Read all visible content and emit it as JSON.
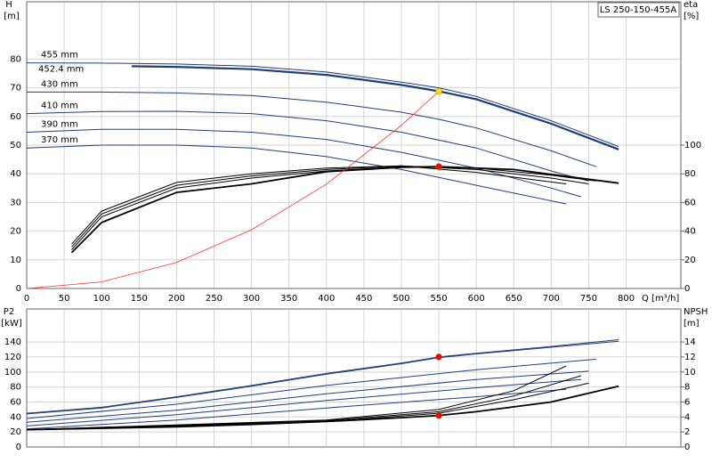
{
  "chart_data": [
    {
      "type": "line",
      "model": "LS 250-150-455A",
      "ylabel": "H",
      "yunit": "[m]",
      "y2label": "eta",
      "y2unit": "[%]",
      "xlabel": "Q [m³/h]",
      "xlim": [
        0,
        873
      ],
      "xticks": [
        0,
        50,
        100,
        150,
        200,
        250,
        300,
        350,
        400,
        450,
        500,
        550,
        600,
        650,
        700,
        750,
        800
      ],
      "ylim": [
        0,
        100
      ],
      "yticks": [
        0,
        10,
        20,
        30,
        40,
        50,
        60,
        70,
        80
      ],
      "y2lim": [
        0,
        200
      ],
      "y2ticks": [
        0,
        20,
        40,
        60,
        80,
        100
      ],
      "grid": true,
      "series": [
        {
          "name": "455 mm",
          "color": "#1f3f7a",
          "x": [
            0,
            100,
            200,
            300,
            400,
            500,
            550,
            600,
            700,
            790
          ],
          "values": [
            78.7,
            78.6,
            78.3,
            77.5,
            75.5,
            72,
            70,
            67,
            58.5,
            49.5
          ]
        },
        {
          "name": "452.4 mm",
          "color": "#1f3f7a",
          "width": 2.2,
          "x": [
            140,
            200,
            300,
            400,
            500,
            550,
            600,
            700,
            790
          ],
          "values": [
            77.5,
            77.3,
            76.5,
            74.5,
            71,
            68.8,
            66,
            57.5,
            48.5
          ]
        },
        {
          "name": "430 mm",
          "color": "#1f3f7a",
          "x": [
            0,
            100,
            200,
            300,
            400,
            500,
            550,
            600,
            700,
            760
          ],
          "values": [
            68.5,
            68.5,
            68.2,
            67.3,
            65,
            61.5,
            59,
            56,
            48,
            42.5
          ]
        },
        {
          "name": "410 mm",
          "color": "#1f3f7a",
          "x": [
            0,
            100,
            200,
            300,
            400,
            500,
            600,
            700,
            750
          ],
          "values": [
            61,
            61.7,
            61.8,
            61,
            58.5,
            54.5,
            49,
            41,
            37.5
          ]
        },
        {
          "name": "390 mm",
          "color": "#1f3f7a",
          "x": [
            0,
            100,
            200,
            300,
            400,
            500,
            600,
            700,
            740
          ],
          "values": [
            54.5,
            55.5,
            55.5,
            54.5,
            52,
            47.5,
            42,
            35,
            32
          ]
        },
        {
          "name": "370 mm",
          "color": "#1f3f7a",
          "x": [
            0,
            100,
            200,
            300,
            400,
            500,
            600,
            720
          ],
          "values": [
            49,
            50,
            50,
            49,
            46,
            41.5,
            36,
            29.5
          ]
        },
        {
          "axis": "y2",
          "color": "#000000",
          "width": 1.8,
          "x": [
            60,
            100,
            200,
            300,
            400,
            500,
            550,
            650,
            790
          ],
          "values": [
            25,
            46,
            67,
            73,
            81.5,
            84.6,
            85,
            83,
            73.5
          ]
        },
        {
          "axis": "y2",
          "color": "#000000",
          "x": [
            60,
            100,
            200,
            300,
            400,
            500,
            600,
            700,
            760
          ],
          "values": [
            27,
            50,
            70,
            77,
            82,
            85,
            84,
            79,
            75
          ]
        },
        {
          "axis": "y2",
          "color": "#000000",
          "x": [
            60,
            100,
            200,
            300,
            400,
            500,
            600,
            700,
            750
          ],
          "values": [
            29,
            52,
            72,
            78.5,
            83,
            85.5,
            83,
            77,
            73
          ]
        },
        {
          "axis": "y2",
          "color": "#000000",
          "x": [
            60,
            100,
            200,
            300,
            400,
            500,
            600,
            720
          ],
          "values": [
            31,
            54,
            74,
            80,
            84,
            85.5,
            81,
            73
          ]
        },
        {
          "color": "#ff3030",
          "width": 0.8,
          "x": [
            0,
            100,
            200,
            300,
            400,
            500,
            550
          ],
          "values": [
            0,
            2.3,
            9.1,
            20.5,
            36.4,
            56.9,
            68.8
          ]
        },
        {
          "style": "dot",
          "color": "#ffe000",
          "x": [
            550
          ],
          "values": [
            68.8
          ]
        },
        {
          "style": "dot",
          "axis": "y2",
          "color": "#ff0000",
          "x": [
            550
          ],
          "values": [
            85
          ]
        }
      ]
    },
    {
      "type": "line",
      "ylabel": "P2",
      "yunit": "[kW]",
      "y2label": "NPSH",
      "y2unit": "[m]",
      "xlim": [
        0,
        873
      ],
      "xticks": [
        0,
        50,
        100,
        150,
        200,
        250,
        300,
        350,
        400,
        450,
        500,
        550,
        600,
        650,
        700,
        750,
        800
      ],
      "ylim": [
        0,
        184
      ],
      "yticks": [
        0,
        20,
        40,
        60,
        80,
        100,
        120,
        140
      ],
      "y2lim": [
        0,
        18.4
      ],
      "y2ticks": [
        0,
        2,
        4,
        6,
        8,
        10,
        12,
        14
      ],
      "grid": true,
      "series": [
        {
          "color": "#1f3f7a",
          "x": [
            0,
            100,
            200,
            300,
            400,
            500,
            550,
            600,
            700,
            790
          ],
          "values": [
            45,
            53,
            67,
            82,
            98,
            112,
            120,
            125,
            134,
            143
          ]
        },
        {
          "color": "#1f3f7a",
          "x": [
            0,
            100,
            200,
            300,
            400,
            500,
            550,
            600,
            700,
            790
          ],
          "values": [
            44,
            52,
            66,
            81,
            97,
            111,
            119,
            124,
            133,
            141
          ]
        },
        {
          "color": "#1f3f7a",
          "x": [
            0,
            200,
            400,
            600,
            760
          ],
          "values": [
            38,
            57,
            82,
            103,
            117
          ]
        },
        {
          "color": "#1f3f7a",
          "x": [
            0,
            200,
            400,
            600,
            750
          ],
          "values": [
            33,
            49,
            71,
            90,
            101
          ]
        },
        {
          "color": "#1f3f7a",
          "x": [
            0,
            200,
            400,
            600,
            740
          ],
          "values": [
            28,
            43,
            62,
            79,
            90
          ]
        },
        {
          "color": "#1f3f7a",
          "x": [
            0,
            200,
            400,
            600,
            720
          ],
          "values": [
            24,
            36,
            52,
            67,
            77
          ]
        },
        {
          "axis": "y2",
          "color": "#000000",
          "width": 1.8,
          "x": [
            0,
            200,
            300,
            400,
            500,
            550,
            600,
            700,
            790
          ],
          "values": [
            2.3,
            2.7,
            3.0,
            3.4,
            3.9,
            4.2,
            4.7,
            6.0,
            8.1
          ]
        },
        {
          "axis": "y2",
          "color": "#000000",
          "x": [
            0,
            400,
            550,
            650,
            720
          ],
          "values": [
            2.3,
            3.6,
            5,
            7.5,
            10.8
          ]
        },
        {
          "axis": "y2",
          "color": "#000000",
          "x": [
            0,
            400,
            550,
            650,
            740
          ],
          "values": [
            2.3,
            3.5,
            4.7,
            6.8,
            9.5
          ]
        },
        {
          "axis": "y2",
          "color": "#000000",
          "x": [
            0,
            400,
            550,
            650,
            750
          ],
          "values": [
            2.3,
            3.4,
            4.5,
            6.3,
            8.5
          ]
        },
        {
          "style": "dot",
          "color": "#ff0000",
          "x": [
            550
          ],
          "values": [
            120
          ]
        },
        {
          "style": "dot",
          "axis": "y2",
          "color": "#ff0000",
          "x": [
            550
          ],
          "values": [
            4.2
          ]
        }
      ]
    }
  ]
}
